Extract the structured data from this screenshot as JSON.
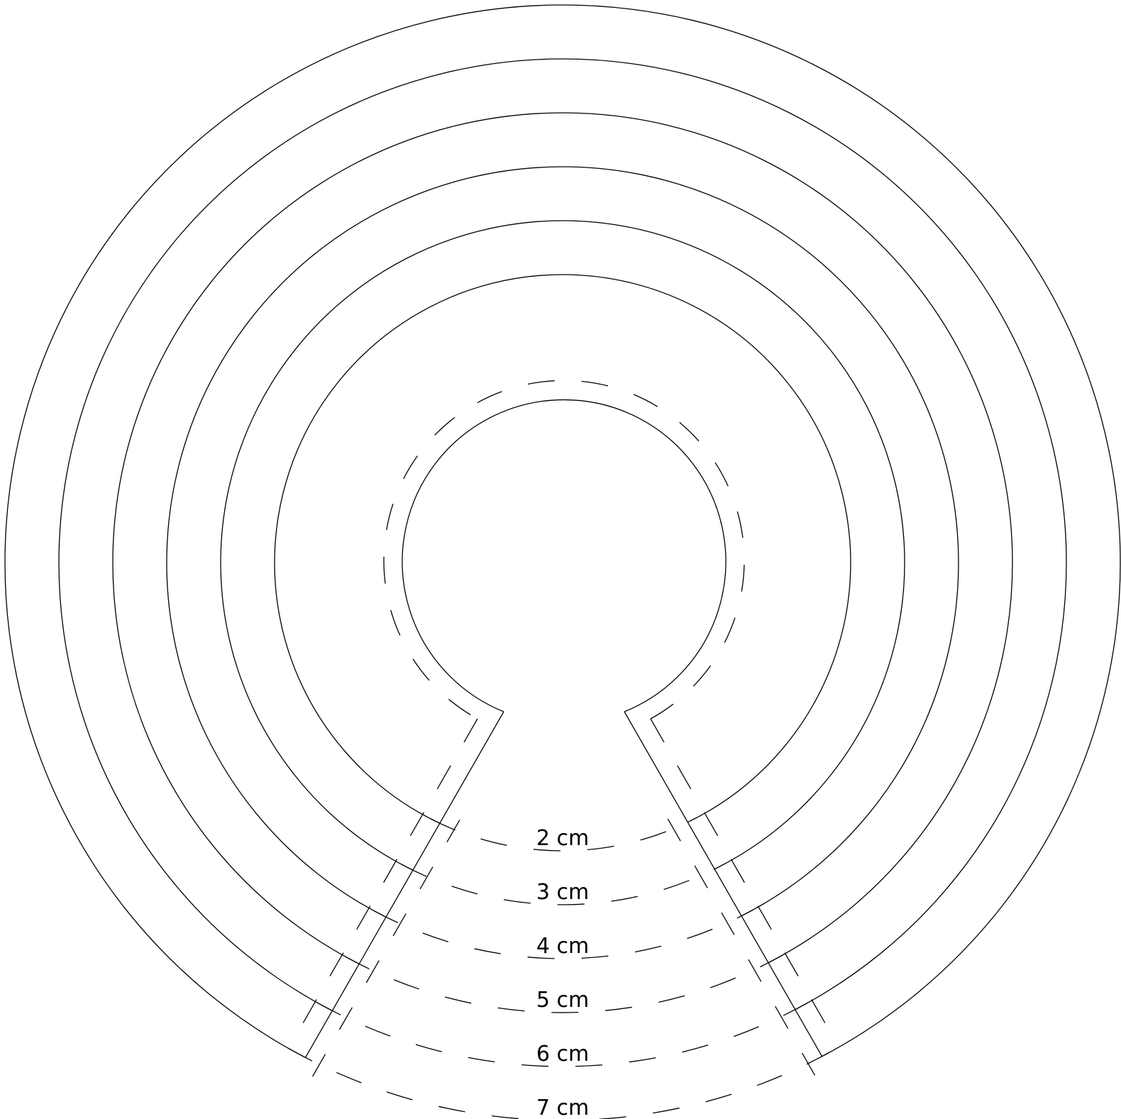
{
  "title": "",
  "labels": [
    "2 cm",
    "3 cm",
    "4 cm",
    "5 cm",
    "6 cm",
    "7 cm"
  ],
  "colors": {
    "line": "#000000",
    "background": "#ffffff"
  }
}
